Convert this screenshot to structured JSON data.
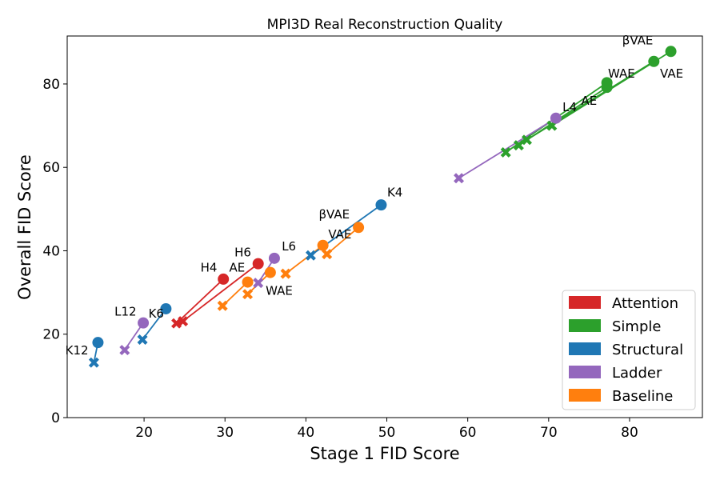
{
  "chart_data": {
    "type": "scatter",
    "title": "MPI3D Real Reconstruction Quality",
    "xlabel": "Stage 1 FID Score",
    "ylabel": "Overall FID Score",
    "xlim": [
      10.5,
      89
    ],
    "ylim": [
      0,
      91.5
    ],
    "xticks": [
      20,
      30,
      40,
      50,
      60,
      70,
      80
    ],
    "yticks": [
      0,
      20,
      40,
      60,
      80
    ],
    "grid": false,
    "legend_position": "lower-right",
    "colors": {
      "Attention": "#d62728",
      "Simple": "#2ca02c",
      "Structural": "#1f77b4",
      "Ladder": "#9467bd",
      "Baseline": "#ff7f0e"
    },
    "legend": [
      "Attention",
      "Simple",
      "Structural",
      "Ladder",
      "Baseline"
    ],
    "series": [
      {
        "name": "Baseline",
        "lines": [
          [
            [
              29.7,
              26.8
            ],
            [
              32.8,
              32.5
            ]
          ],
          [
            [
              32.8,
              29.6
            ],
            [
              35.6,
              34.8
            ]
          ],
          [
            [
              37.5,
              34.5
            ],
            [
              42.1,
              41.3
            ]
          ],
          [
            [
              42.6,
              39.2
            ],
            [
              46.5,
              45.6
            ]
          ]
        ],
        "crosses": [
          [
            29.7,
            26.8
          ],
          [
            32.8,
            29.6
          ],
          [
            37.5,
            34.5
          ],
          [
            42.6,
            39.2
          ]
        ],
        "circles": [
          [
            32.8,
            32.5
          ],
          [
            35.6,
            34.8
          ],
          [
            42.1,
            41.3
          ],
          [
            46.5,
            45.6
          ]
        ]
      },
      {
        "name": "Simple",
        "lines": [
          [
            [
              64.7,
              63.6
            ],
            [
              77.2,
              80.3
            ]
          ],
          [
            [
              66.3,
              65.3
            ],
            [
              77.2,
              79.2
            ]
          ],
          [
            [
              67.3,
              66.6
            ],
            [
              83.0,
              85.4
            ]
          ],
          [
            [
              70.4,
              70.0
            ],
            [
              85.1,
              87.8
            ]
          ]
        ],
        "crosses": [
          [
            64.7,
            63.6
          ],
          [
            66.3,
            65.3
          ],
          [
            67.3,
            66.6
          ],
          [
            70.4,
            70.0
          ]
        ],
        "circles": [
          [
            77.2,
            80.3
          ],
          [
            77.2,
            79.2
          ],
          [
            83.0,
            85.4
          ],
          [
            85.1,
            87.8
          ]
        ]
      },
      {
        "name": "Ladder",
        "lines": [
          [
            [
              17.6,
              16.2
            ],
            [
              19.9,
              22.7
            ]
          ],
          [
            [
              34.1,
              32.3
            ],
            [
              36.1,
              38.2
            ]
          ],
          [
            [
              58.9,
              57.4
            ],
            [
              70.9,
              71.8
            ]
          ]
        ],
        "crosses": [
          [
            17.6,
            16.2
          ],
          [
            34.1,
            32.3
          ],
          [
            58.9,
            57.4
          ]
        ],
        "circles": [
          [
            19.9,
            22.7
          ],
          [
            36.1,
            38.2
          ],
          [
            70.9,
            71.8
          ]
        ]
      },
      {
        "name": "Structural",
        "lines": [
          [
            [
              13.8,
              13.2
            ],
            [
              14.3,
              18.0
            ]
          ],
          [
            [
              19.8,
              18.7
            ],
            [
              22.7,
              26.1
            ]
          ],
          [
            [
              40.6,
              38.9
            ],
            [
              49.3,
              51.0
            ]
          ]
        ],
        "crosses": [
          [
            13.8,
            13.2
          ],
          [
            19.8,
            18.7
          ],
          [
            40.6,
            38.9
          ]
        ],
        "circles": [
          [
            14.3,
            18.0
          ],
          [
            22.7,
            26.1
          ],
          [
            49.3,
            51.0
          ]
        ]
      },
      {
        "name": "Attention",
        "lines": [
          [
            [
              24.0,
              22.6
            ],
            [
              29.8,
              33.2
            ]
          ],
          [
            [
              24.8,
              23.1
            ],
            [
              34.1,
              36.9
            ]
          ]
        ],
        "crosses": [
          [
            24.0,
            22.6
          ],
          [
            24.8,
            23.1
          ]
        ],
        "circles": [
          [
            29.8,
            33.2
          ],
          [
            34.1,
            36.9
          ]
        ]
      }
    ],
    "annotations": [
      {
        "text": "H4",
        "x": 28.0,
        "y": 35.0
      },
      {
        "text": "H6",
        "x": 32.2,
        "y": 38.7
      },
      {
        "text": "AE",
        "x": 31.5,
        "y": 35.0
      },
      {
        "text": "L6",
        "x": 37.9,
        "y": 40.1
      },
      {
        "text": "VAE",
        "x": 44.2,
        "y": 43.0
      },
      {
        "text": "βVAE",
        "x": 43.5,
        "y": 47.8
      },
      {
        "text": "K4",
        "x": 51.0,
        "y": 53.0
      },
      {
        "text": "WAE",
        "x": 36.7,
        "y": 29.4
      },
      {
        "text": "L12",
        "x": 17.7,
        "y": 24.5
      },
      {
        "text": "K6",
        "x": 21.5,
        "y": 24.0
      },
      {
        "text": "K12",
        "x": 11.7,
        "y": 15.2
      },
      {
        "text": "L4",
        "x": 72.6,
        "y": 73.5
      },
      {
        "text": "AE",
        "x": 75.0,
        "y": 75.0
      },
      {
        "text": "WAE",
        "x": 79.0,
        "y": 81.5
      },
      {
        "text": "βVAE",
        "x": 81.0,
        "y": 89.5
      },
      {
        "text": "VAE",
        "x": 85.2,
        "y": 81.5
      }
    ]
  }
}
